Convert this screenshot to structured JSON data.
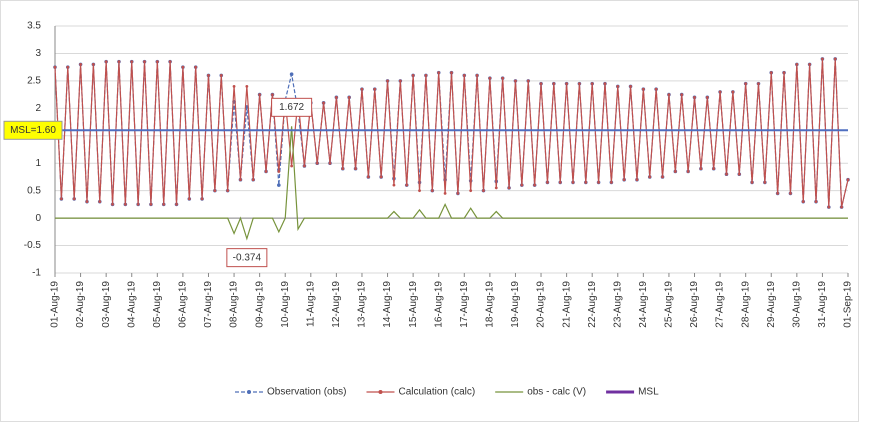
{
  "chart_data": {
    "type": "line",
    "x": [
      0,
      0.25,
      0.5,
      0.75,
      1,
      1.25,
      1.5,
      1.75,
      2,
      2.25,
      2.5,
      2.75,
      3,
      3.25,
      3.5,
      3.75,
      4,
      4.25,
      4.5,
      4.75,
      5,
      5.25,
      5.5,
      5.75,
      6,
      6.25,
      6.5,
      6.75,
      7,
      7.25,
      7.5,
      7.75,
      8,
      8.25,
      8.5,
      8.75,
      9,
      9.25,
      9.5,
      9.75,
      10,
      10.25,
      10.5,
      10.75,
      11,
      11.25,
      11.5,
      11.75,
      12,
      12.25,
      12.5,
      12.75,
      13,
      13.25,
      13.5,
      13.75,
      14,
      14.25,
      14.5,
      14.75,
      15,
      15.25,
      15.5,
      15.75,
      16,
      16.25,
      16.5,
      16.75,
      17,
      17.25,
      17.5,
      17.75,
      18,
      18.25,
      18.5,
      18.75,
      19,
      19.25,
      19.5,
      19.75,
      20,
      20.25,
      20.5,
      20.75,
      21,
      21.25,
      21.5,
      21.75,
      22,
      22.25,
      22.5,
      22.75,
      23,
      23.25,
      23.5,
      23.75,
      24,
      24.25,
      24.5,
      24.75,
      25,
      25.25,
      25.5,
      25.75,
      26,
      26.25,
      26.5,
      26.75,
      27,
      27.25,
      27.5,
      27.75,
      28,
      28.25,
      28.5,
      28.75,
      29,
      29.25,
      29.5,
      29.75,
      30,
      30.25,
      30.5,
      30.75,
      31
    ],
    "series": [
      {
        "name": "Observation (obs)",
        "color": "#4f6fb8",
        "values": [
          2.75,
          0.35,
          2.75,
          0.35,
          2.8,
          0.3,
          2.8,
          0.3,
          2.85,
          0.25,
          2.85,
          0.25,
          2.85,
          0.25,
          2.85,
          0.25,
          2.85,
          0.25,
          2.85,
          0.25,
          2.75,
          0.35,
          2.75,
          0.35,
          2.6,
          0.5,
          2.6,
          0.5,
          2.12,
          0.7,
          2.026,
          0.7,
          2.25,
          0.85,
          2.25,
          0.6,
          2.15,
          2.622,
          1.95,
          0.95,
          2.1,
          1.0,
          2.1,
          1.0,
          2.2,
          0.9,
          2.2,
          0.9,
          2.35,
          0.75,
          2.35,
          0.75,
          2.5,
          0.72,
          2.5,
          0.6,
          2.6,
          0.65,
          2.6,
          0.5,
          2.65,
          0.7,
          2.65,
          0.45,
          2.6,
          0.68,
          2.6,
          0.5,
          2.55,
          0.67,
          2.55,
          0.55,
          2.5,
          0.6,
          2.5,
          0.6,
          2.45,
          0.65,
          2.45,
          0.65,
          2.45,
          0.65,
          2.45,
          0.65,
          2.45,
          0.65,
          2.45,
          0.65,
          2.4,
          0.7,
          2.4,
          0.7,
          2.35,
          0.75,
          2.35,
          0.75,
          2.25,
          0.85,
          2.25,
          0.85,
          2.2,
          0.9,
          2.2,
          0.9,
          2.3,
          0.8,
          2.3,
          0.8,
          2.45,
          0.65,
          2.45,
          0.65,
          2.65,
          0.45,
          2.65,
          0.45,
          2.8,
          0.3,
          2.8,
          0.3,
          2.9,
          0.2,
          2.9,
          0.2,
          0.7
        ]
      },
      {
        "name": "Calculation (calc)",
        "color": "#c0504d",
        "values": [
          2.75,
          0.35,
          2.75,
          0.35,
          2.8,
          0.3,
          2.8,
          0.3,
          2.85,
          0.25,
          2.85,
          0.25,
          2.85,
          0.25,
          2.85,
          0.25,
          2.85,
          0.25,
          2.85,
          0.25,
          2.75,
          0.35,
          2.75,
          0.35,
          2.6,
          0.5,
          2.6,
          0.5,
          2.4,
          0.7,
          2.4,
          0.7,
          2.25,
          0.85,
          2.25,
          0.85,
          2.15,
          0.95,
          2.15,
          0.95,
          2.1,
          1.0,
          2.1,
          1.0,
          2.2,
          0.9,
          2.2,
          0.9,
          2.35,
          0.75,
          2.35,
          0.75,
          2.5,
          0.6,
          2.5,
          0.6,
          2.6,
          0.5,
          2.6,
          0.5,
          2.65,
          0.45,
          2.65,
          0.45,
          2.6,
          0.5,
          2.6,
          0.5,
          2.55,
          0.55,
          2.55,
          0.55,
          2.5,
          0.6,
          2.5,
          0.6,
          2.45,
          0.65,
          2.45,
          0.65,
          2.45,
          0.65,
          2.45,
          0.65,
          2.45,
          0.65,
          2.45,
          0.65,
          2.4,
          0.7,
          2.4,
          0.7,
          2.35,
          0.75,
          2.35,
          0.75,
          2.25,
          0.85,
          2.25,
          0.85,
          2.2,
          0.9,
          2.2,
          0.9,
          2.3,
          0.8,
          2.3,
          0.8,
          2.45,
          0.65,
          2.45,
          0.65,
          2.65,
          0.45,
          2.65,
          0.45,
          2.8,
          0.3,
          2.8,
          0.3,
          2.9,
          0.2,
          2.9,
          0.2,
          0.7
        ]
      },
      {
        "name": "obs - calc (V)",
        "color": "#77933c",
        "values": [
          0,
          0,
          0,
          0,
          0,
          0,
          0,
          0,
          0,
          0,
          0,
          0,
          0,
          0,
          0,
          0,
          0,
          0,
          0,
          0,
          0,
          0,
          0,
          0,
          0,
          0,
          0,
          0,
          -0.28,
          0,
          -0.374,
          0,
          0,
          0,
          0,
          -0.25,
          0,
          1.672,
          -0.2,
          0,
          0,
          0,
          0,
          0,
          0,
          0,
          0,
          0,
          0,
          0,
          0,
          0,
          0,
          0.12,
          0,
          0,
          0,
          0.15,
          0,
          0,
          0,
          0.25,
          0,
          0,
          0,
          0.18,
          0,
          0,
          0,
          0.12,
          0,
          0,
          0,
          0,
          0,
          0,
          0,
          0,
          0,
          0,
          0,
          0,
          0,
          0,
          0,
          0,
          0,
          0,
          0,
          0,
          0,
          0,
          0,
          0,
          0,
          0,
          0,
          0,
          0,
          0,
          0,
          0,
          0,
          0,
          0,
          0,
          0,
          0,
          0,
          0,
          0,
          0,
          0,
          0,
          0,
          0,
          0,
          0,
          0,
          0,
          0,
          0,
          0,
          0,
          0
        ]
      }
    ],
    "msl": {
      "name": "MSL",
      "value": 1.6,
      "label": "MSL=1.60",
      "color": "#4f6fc0",
      "legend_color": "#7030a0"
    },
    "annotations": [
      {
        "text": "1.672",
        "x": 9.25
      },
      {
        "text": "-0.374",
        "x": 7.5
      }
    ],
    "xlim": [
      0,
      31
    ],
    "xticks": [
      {
        "value": 0,
        "label": "01-Aug-19"
      },
      {
        "value": 1,
        "label": "02-Aug-19"
      },
      {
        "value": 2,
        "label": "03-Aug-19"
      },
      {
        "value": 3,
        "label": "04-Aug-19"
      },
      {
        "value": 4,
        "label": "05-Aug-19"
      },
      {
        "value": 5,
        "label": "06-Aug-19"
      },
      {
        "value": 6,
        "label": "07-Aug-19"
      },
      {
        "value": 7,
        "label": "08-Aug-19"
      },
      {
        "value": 8,
        "label": "09-Aug-19"
      },
      {
        "value": 9,
        "label": "10-Aug-19"
      },
      {
        "value": 10,
        "label": "11-Aug-19"
      },
      {
        "value": 11,
        "label": "12-Aug-19"
      },
      {
        "value": 12,
        "label": "13-Aug-19"
      },
      {
        "value": 13,
        "label": "14-Aug-19"
      },
      {
        "value": 14,
        "label": "15-Aug-19"
      },
      {
        "value": 15,
        "label": "16-Aug-19"
      },
      {
        "value": 16,
        "label": "17-Aug-19"
      },
      {
        "value": 17,
        "label": "18-Aug-19"
      },
      {
        "value": 18,
        "label": "19-Aug-19"
      },
      {
        "value": 19,
        "label": "20-Aug-19"
      },
      {
        "value": 20,
        "label": "21-Aug-19"
      },
      {
        "value": 21,
        "label": "22-Aug-19"
      },
      {
        "value": 22,
        "label": "23-Aug-19"
      },
      {
        "value": 23,
        "label": "24-Aug-19"
      },
      {
        "value": 24,
        "label": "25-Aug-19"
      },
      {
        "value": 25,
        "label": "26-Aug-19"
      },
      {
        "value": 26,
        "label": "27-Aug-19"
      },
      {
        "value": 27,
        "label": "28-Aug-19"
      },
      {
        "value": 28,
        "label": "29-Aug-19"
      },
      {
        "value": 29,
        "label": "30-Aug-19"
      },
      {
        "value": 30,
        "label": "31-Aug-19"
      },
      {
        "value": 31,
        "label": "01-Sep-19"
      }
    ],
    "ylim": [
      -1,
      3.5
    ],
    "yticks": [
      -1,
      -0.5,
      0,
      0.5,
      1,
      1.5,
      2,
      2.5,
      3,
      3.5
    ],
    "grid": true
  }
}
